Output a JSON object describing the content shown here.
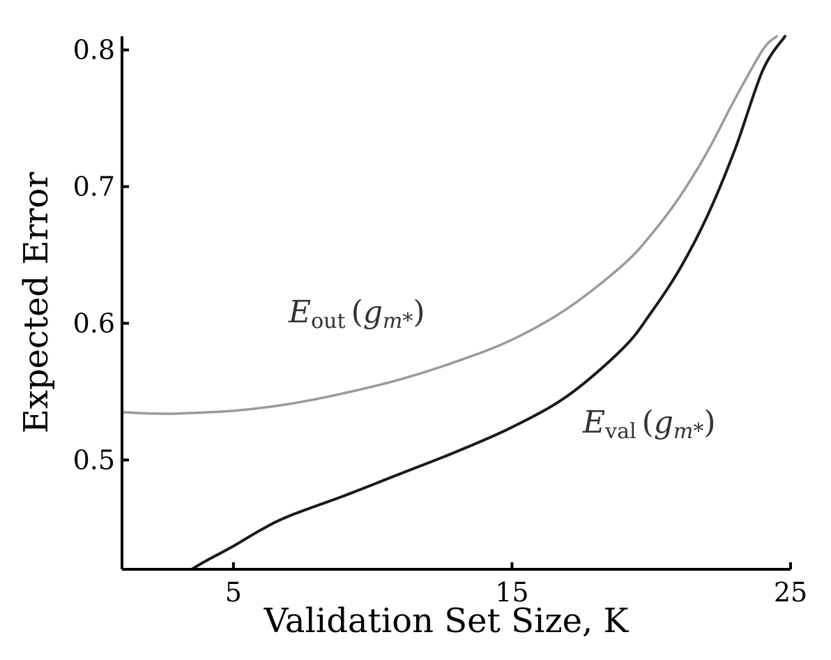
{
  "chart_data": {
    "type": "line",
    "title": "",
    "xlabel": "Validation Set Size, K",
    "ylabel": "Expected Error",
    "xlim": [
      1,
      25
    ],
    "ylim": [
      0.42,
      0.81
    ],
    "x_ticks": [
      5,
      15,
      25
    ],
    "y_ticks": [
      0.5,
      0.6,
      0.7,
      0.8
    ],
    "x_tick_labels": [
      "5",
      "15",
      "25"
    ],
    "y_tick_labels": [
      "0.5",
      "0.6",
      "0.7",
      "0.8"
    ],
    "grid": false,
    "legend": "none (inline labels)",
    "series": [
      {
        "label_parts": {
          "main": "E",
          "sub": "out",
          "arg": "g",
          "arg_sub": "m*"
        },
        "color": "#9a9a9a",
        "x": [
          1,
          2,
          3,
          5,
          7,
          9,
          11,
          13,
          15,
          17,
          19,
          20,
          21,
          22,
          23,
          24,
          24.5
        ],
        "values": [
          0.535,
          0.534,
          0.534,
          0.536,
          0.541,
          0.549,
          0.559,
          0.572,
          0.588,
          0.611,
          0.643,
          0.665,
          0.692,
          0.725,
          0.764,
          0.8,
          0.81
        ]
      },
      {
        "label_parts": {
          "main": "E",
          "sub": "val",
          "arg": "g",
          "arg_sub": "m*"
        },
        "color": "#1a1a1a",
        "x": [
          3.5,
          4,
          5,
          6,
          7,
          9,
          11,
          13,
          15,
          17,
          19,
          20,
          21,
          22,
          23,
          24,
          24.8
        ],
        "values": [
          0.42,
          0.426,
          0.437,
          0.449,
          0.459,
          0.474,
          0.49,
          0.506,
          0.524,
          0.547,
          0.582,
          0.608,
          0.639,
          0.678,
          0.727,
          0.785,
          0.81
        ]
      }
    ]
  }
}
